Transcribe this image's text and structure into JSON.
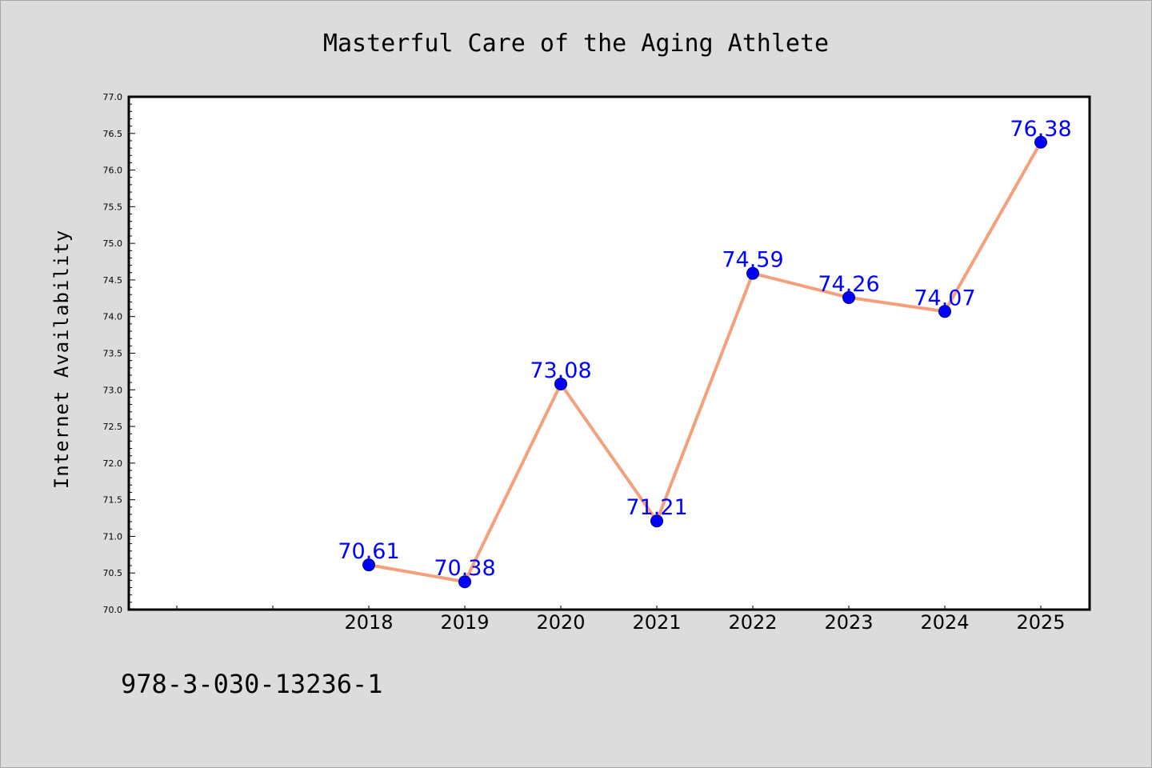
{
  "chart_data": {
    "type": "line",
    "title": "Masterful Care of the Aging Athlete",
    "xlabel": "",
    "ylabel": "Internet Availability",
    "x": [
      "2018",
      "2019",
      "2020",
      "2021",
      "2022",
      "2023",
      "2024",
      "2025"
    ],
    "series": [
      {
        "values": [
          70.61,
          70.38,
          73.08,
          71.21,
          74.59,
          74.26,
          74.07,
          76.38
        ],
        "data_labels": [
          "70.61",
          "70.38",
          "73.08",
          "71.21",
          "74.59",
          "74.26",
          "74.07",
          "76.38"
        ]
      }
    ],
    "ylim": [
      70.0,
      77.0
    ],
    "yticks": [
      "70.0",
      "70.5",
      "71.0",
      "71.5",
      "72.0",
      "72.5",
      "73.0",
      "73.5",
      "74.0",
      "74.5",
      "75.0",
      "75.5",
      "76.0",
      "76.5",
      "77.0"
    ],
    "grid": false,
    "legend": "none",
    "colors": {
      "line": "#f4a07c",
      "marker": "#0000ff",
      "data_label": "#0000ff",
      "plot_background": "#ffffff",
      "figure_background": "#dcdcdc",
      "frame": "#000000"
    },
    "footer_text": "978-3-030-13236-1"
  }
}
